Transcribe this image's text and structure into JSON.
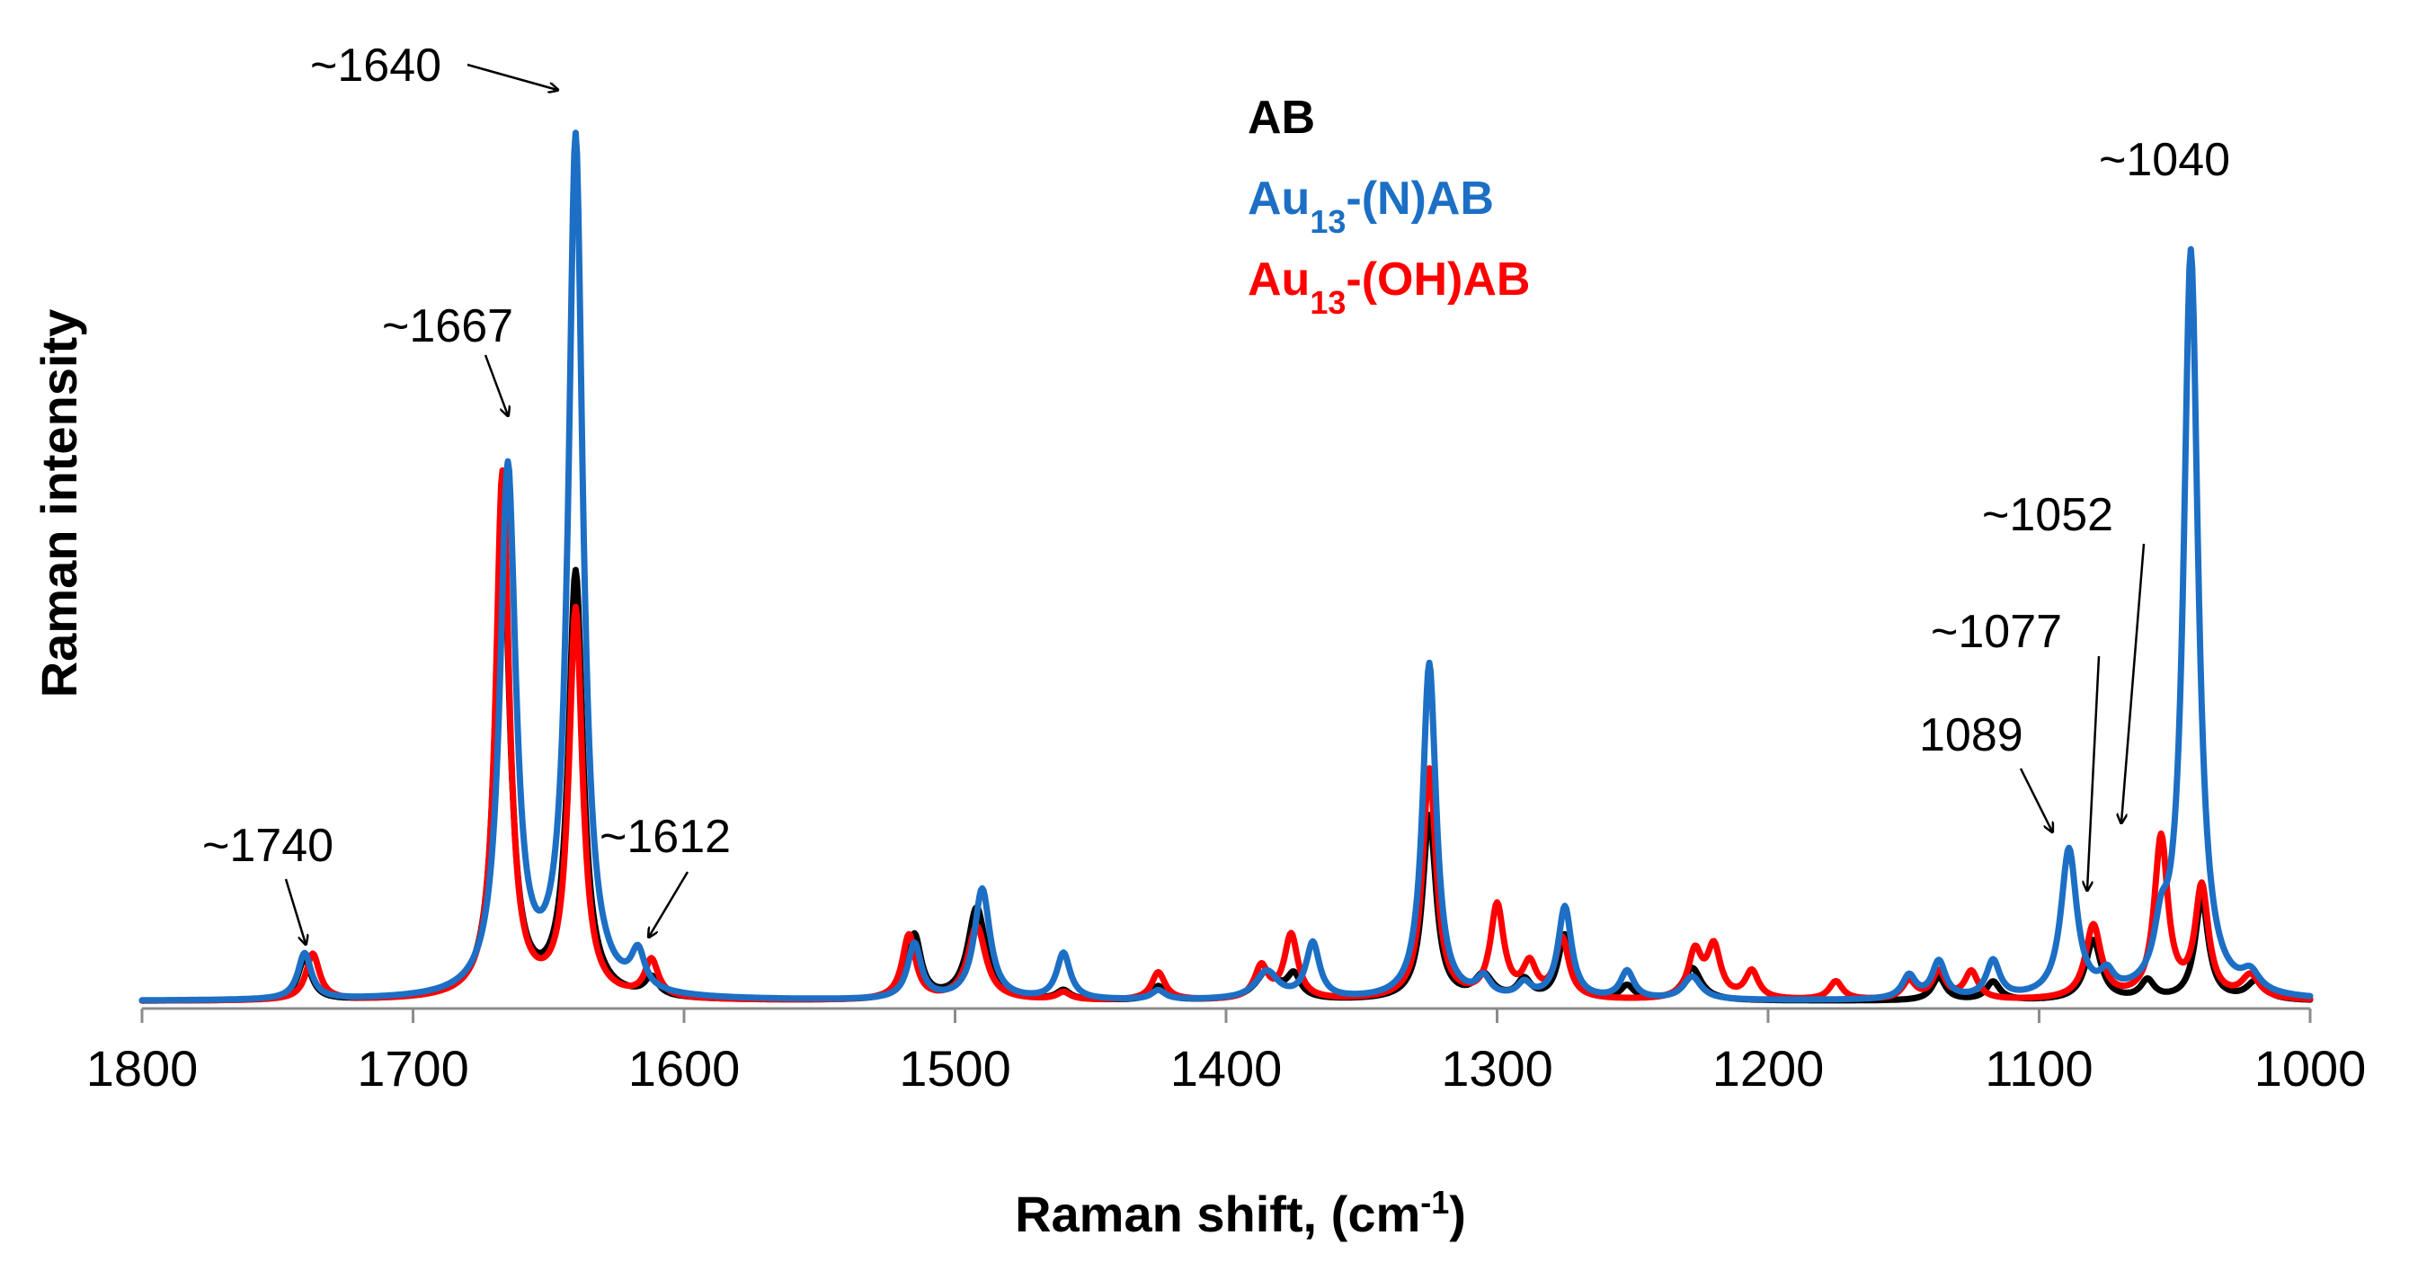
{
  "chart_data": {
    "type": "line",
    "xlabel": "Raman shift, (cm",
    "xlabel_sup": "-1",
    "xlabel_close": ")",
    "ylabel": "Raman intensity",
    "xlim": [
      1800,
      1000
    ],
    "ylim": [
      0,
      1.05
    ],
    "x_reversed": true,
    "x_ticks": [
      1800,
      1700,
      1600,
      1500,
      1400,
      1300,
      1200,
      1100,
      1000
    ],
    "x_tick_labels": [
      "1800",
      "1700",
      "1600",
      "1500",
      "1400",
      "1300",
      "1200",
      "1100",
      "1000"
    ],
    "grid": false,
    "legend_position": "top-center",
    "series": [
      {
        "name": "AB",
        "legend_main": "AB",
        "legend_sub": "",
        "legend_rest": "",
        "color": "#000000",
        "baseline": 0.008,
        "peaks": [
          [
            1740,
            0.045,
            3
          ],
          [
            1667,
            0.52,
            3.2
          ],
          [
            1640,
            0.46,
            3.2
          ],
          [
            1612,
            0.02,
            3
          ],
          [
            1515,
            0.07,
            3
          ],
          [
            1492,
            0.1,
            4
          ],
          [
            1460,
            0.01,
            3
          ],
          [
            1425,
            0.015,
            3
          ],
          [
            1385,
            0.03,
            5
          ],
          [
            1375,
            0.025,
            3
          ],
          [
            1325,
            0.2,
            3
          ],
          [
            1305,
            0.025,
            4
          ],
          [
            1290,
            0.02,
            3
          ],
          [
            1275,
            0.07,
            3
          ],
          [
            1252,
            0.015,
            3
          ],
          [
            1228,
            0.035,
            4
          ],
          [
            1137,
            0.025,
            3
          ],
          [
            1117,
            0.02,
            3
          ],
          [
            1080,
            0.065,
            3.5
          ],
          [
            1060,
            0.02,
            3
          ],
          [
            1040,
            0.11,
            3
          ],
          [
            1020,
            0.02,
            4
          ]
        ]
      },
      {
        "name": "Au13-(N)AB",
        "legend_main": "Au",
        "legend_sub": "13",
        "legend_rest": "-(N)AB",
        "color": "#1c6fc4",
        "baseline": 0.008,
        "peaks": [
          [
            1740,
            0.05,
            3
          ],
          [
            1665,
            0.57,
            3.5
          ],
          [
            1640,
            0.93,
            3.2
          ],
          [
            1617,
            0.04,
            3
          ],
          [
            1515,
            0.06,
            3
          ],
          [
            1490,
            0.12,
            3.5
          ],
          [
            1460,
            0.05,
            3
          ],
          [
            1425,
            0.01,
            3
          ],
          [
            1385,
            0.03,
            5
          ],
          [
            1368,
            0.06,
            3
          ],
          [
            1325,
            0.365,
            3
          ],
          [
            1305,
            0.02,
            3
          ],
          [
            1290,
            0.015,
            3
          ],
          [
            1275,
            0.1,
            3
          ],
          [
            1252,
            0.03,
            3
          ],
          [
            1228,
            0.025,
            4
          ],
          [
            1148,
            0.025,
            3
          ],
          [
            1137,
            0.04,
            3
          ],
          [
            1117,
            0.04,
            3
          ],
          [
            1089,
            0.16,
            3.5
          ],
          [
            1075,
            0.02,
            3
          ],
          [
            1055,
            0.05,
            3
          ],
          [
            1044,
            0.81,
            3.2
          ],
          [
            1022,
            0.02,
            4
          ]
        ]
      },
      {
        "name": "Au13-(OH)AB",
        "legend_main": "Au",
        "legend_sub": "13",
        "legend_rest": "-(OH)AB",
        "color": "#ff0000",
        "baseline": 0.008,
        "peaks": [
          [
            1737,
            0.05,
            3
          ],
          [
            1667,
            0.57,
            3
          ],
          [
            1640,
            0.42,
            3
          ],
          [
            1612,
            0.04,
            3
          ],
          [
            1517,
            0.07,
            3
          ],
          [
            1492,
            0.08,
            4
          ],
          [
            1460,
            0.008,
            3
          ],
          [
            1425,
            0.03,
            3
          ],
          [
            1387,
            0.035,
            3
          ],
          [
            1376,
            0.07,
            3
          ],
          [
            1325,
            0.25,
            3
          ],
          [
            1300,
            0.1,
            3
          ],
          [
            1288,
            0.035,
            3
          ],
          [
            1276,
            0.065,
            3
          ],
          [
            1227,
            0.05,
            3
          ],
          [
            1220,
            0.055,
            3
          ],
          [
            1206,
            0.03,
            3
          ],
          [
            1175,
            0.02,
            3
          ],
          [
            1148,
            0.02,
            3
          ],
          [
            1137,
            0.03,
            3
          ],
          [
            1125,
            0.03,
            3
          ],
          [
            1080,
            0.08,
            3.5
          ],
          [
            1055,
            0.175,
            3
          ],
          [
            1040,
            0.12,
            3
          ],
          [
            1022,
            0.025,
            4
          ]
        ]
      }
    ],
    "annotations": [
      {
        "text": "~1640",
        "x": 1640,
        "y": 0.95
      },
      {
        "text": "~1667",
        "x": 1667,
        "y": 0.6
      },
      {
        "text": "~1740",
        "x": 1740,
        "y": 0.07
      },
      {
        "text": "~1612",
        "x": 1612,
        "y": 0.05
      },
      {
        "text": "1089",
        "x": 1089,
        "y": 0.175
      },
      {
        "text": "~1077",
        "x": 1077,
        "y": 0.1
      },
      {
        "text": "~1052",
        "x": 1052,
        "y": 0.19
      },
      {
        "text": "~1040",
        "x": 1040,
        "y": 0.83
      }
    ]
  }
}
